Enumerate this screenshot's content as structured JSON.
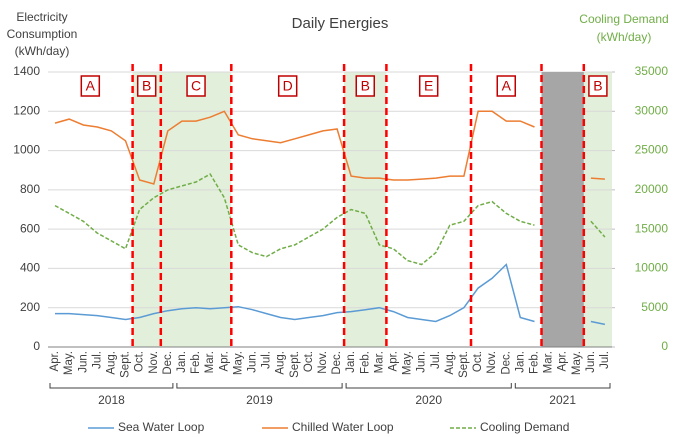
{
  "chart_data": {
    "type": "line",
    "title": "Daily Energies",
    "ylabel": [
      "Electricity",
      "Consumption",
      "(kWh/day)"
    ],
    "y2label": [
      "Cooling Demand",
      "(kWh/day)"
    ],
    "categories": [
      "Apr.",
      "May.",
      "Jun.",
      "Jul.",
      "Aug.",
      "Sept.",
      "Oct.",
      "Nov.",
      "Dec.",
      "Jan.",
      "Feb.",
      "Mar.",
      "Apr.",
      "May.",
      "Jun.",
      "Jul.",
      "Aug.",
      "Sept.",
      "Oct.",
      "Nov.",
      "Dec.",
      "Jan.",
      "Feb.",
      "Mar.",
      "Apr.",
      "May.",
      "Jun.",
      "Jul.",
      "Aug.",
      "Sept.",
      "Oct.",
      "Nov.",
      "Dec.",
      "Jan.",
      "Feb.",
      "Mar.",
      "Apr.",
      "May.",
      "Jun.",
      "Jul."
    ],
    "year_groups": [
      {
        "label": "2018",
        "start": 0,
        "end": 9
      },
      {
        "label": "2019",
        "start": 9,
        "end": 21
      },
      {
        "label": "2020",
        "start": 21,
        "end": 33
      },
      {
        "label": "2021",
        "start": 33,
        "end": 40
      }
    ],
    "series": [
      {
        "name": "Sea Water Loop",
        "color": "#5b9bd5",
        "dash": false,
        "axis": "y",
        "values": [
          170,
          170,
          165,
          160,
          150,
          140,
          150,
          170,
          185,
          195,
          200,
          195,
          200,
          205,
          190,
          170,
          150,
          140,
          150,
          160,
          175,
          180,
          190,
          200,
          180,
          150,
          140,
          130,
          160,
          200,
          300,
          350,
          420,
          150,
          130,
          null,
          null,
          null,
          130,
          115
        ]
      },
      {
        "name": "Chilled Water Loop",
        "color": "#ed7d31",
        "dash": false,
        "axis": "y",
        "values": [
          1140,
          1160,
          1130,
          1120,
          1100,
          1050,
          850,
          830,
          1100,
          1150,
          1150,
          1170,
          1200,
          1080,
          1060,
          1050,
          1040,
          1060,
          1080,
          1100,
          1110,
          870,
          860,
          860,
          850,
          850,
          855,
          860,
          870,
          870,
          1200,
          1200,
          1150,
          1150,
          1120,
          null,
          null,
          null,
          860,
          855
        ]
      },
      {
        "name": "Cooling Demand",
        "color": "#70ad47",
        "dash": true,
        "axis": "y2",
        "values": [
          18000,
          17000,
          16000,
          14500,
          13500,
          12500,
          17500,
          19000,
          20000,
          20500,
          21000,
          22000,
          19000,
          13000,
          12000,
          11500,
          12500,
          13000,
          14000,
          15000,
          16500,
          17500,
          17000,
          13000,
          12500,
          11000,
          10500,
          12000,
          15500,
          16000,
          18000,
          18500,
          17000,
          16000,
          15500,
          null,
          null,
          null,
          16000,
          14000
        ]
      }
    ],
    "regions": [
      {
        "label": "A",
        "start": 0,
        "end": 6,
        "shaded": false
      },
      {
        "label": "B",
        "start": 6,
        "end": 8,
        "shaded": true
      },
      {
        "label": "C",
        "start": 8,
        "end": 13,
        "shaded": true
      },
      {
        "label": "D",
        "start": 13,
        "end": 21,
        "shaded": false
      },
      {
        "label": "B",
        "start": 21,
        "end": 24,
        "shaded": true
      },
      {
        "label": "E",
        "start": 24,
        "end": 30,
        "shaded": false
      },
      {
        "label": "A",
        "start": 30,
        "end": 35,
        "shaded": false
      },
      {
        "label": "B",
        "start": 38,
        "end": 40,
        "shaded": true
      }
    ],
    "boundaries": [
      6,
      8,
      13,
      21,
      24,
      30,
      35,
      38
    ],
    "missing": {
      "start": 35,
      "end": 38,
      "color": "#a6a6a6"
    },
    "shade_color": "#e2efda",
    "boundary_color": "#ff0000",
    "ylim": [
      0,
      1400
    ],
    "yticks": [
      0,
      200,
      400,
      600,
      800,
      1000,
      1200,
      1400
    ],
    "y2lim": [
      0,
      35000
    ],
    "y2ticks": [
      0,
      5000,
      10000,
      15000,
      20000,
      25000,
      30000,
      35000
    ],
    "grid": true
  }
}
